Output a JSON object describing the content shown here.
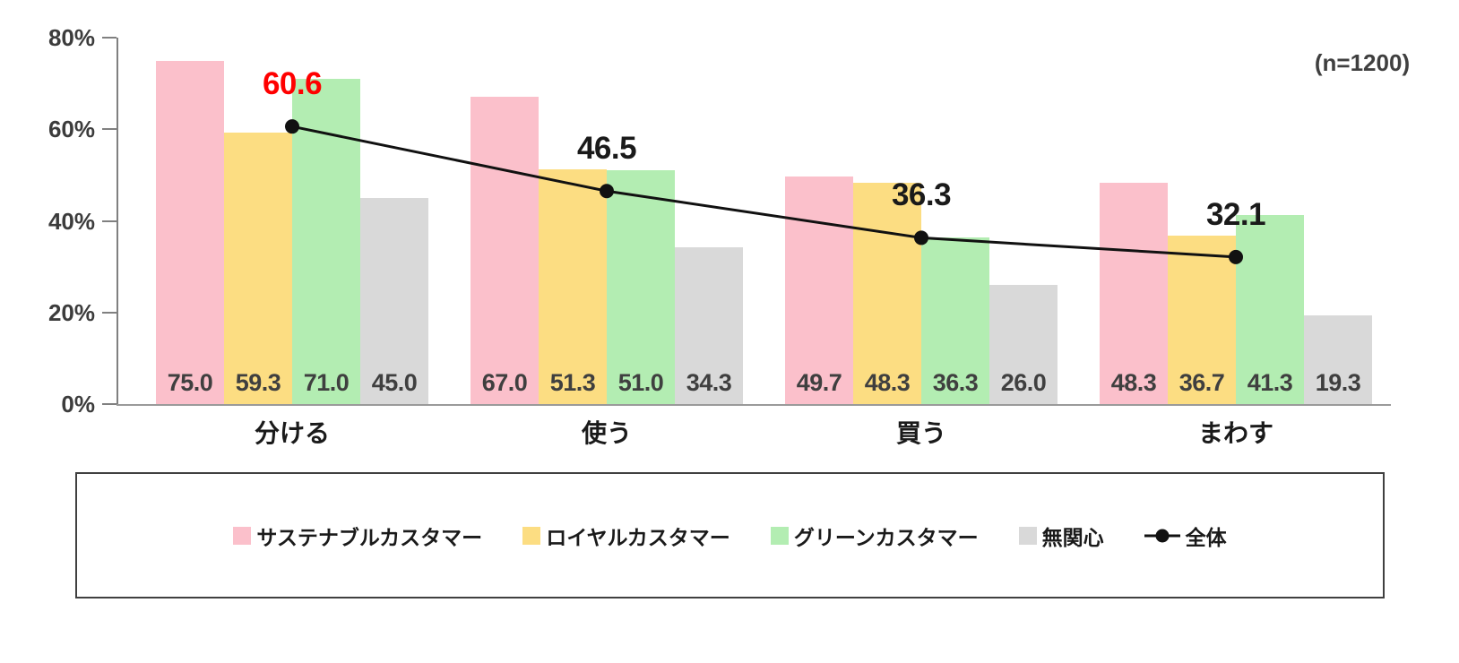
{
  "chart_data": {
    "type": "bar",
    "annotation": "(n=1200)",
    "categories": [
      "分ける",
      "使う",
      "買う",
      "まわす"
    ],
    "series": [
      {
        "name": "サステナブルカスタマー",
        "color": "#FBC0CB",
        "values": [
          75.0,
          67.0,
          49.7,
          48.3
        ]
      },
      {
        "name": "ロイヤルカスタマー",
        "color": "#FCDD82",
        "values": [
          59.3,
          51.3,
          48.3,
          36.7
        ]
      },
      {
        "name": "グリーンカスタマー",
        "color": "#B3EDB2",
        "values": [
          71.0,
          51.0,
          36.3,
          41.3
        ]
      },
      {
        "name": "無関心",
        "color": "#D9D9D9",
        "values": [
          45.0,
          34.3,
          26.0,
          19.3
        ]
      }
    ],
    "line_series": {
      "name": "全体",
      "color": "#111111",
      "values": [
        60.6,
        46.5,
        36.3,
        32.1
      ],
      "label_colors": [
        "#FF0000",
        "#1a1a1a",
        "#1a1a1a",
        "#1a1a1a"
      ]
    },
    "ylim": [
      0,
      80
    ],
    "y_ticks": [
      {
        "value": 80,
        "label": "80%"
      },
      {
        "value": 60,
        "label": "60%"
      },
      {
        "value": 40,
        "label": "40%"
      },
      {
        "value": 20,
        "label": "20%"
      },
      {
        "value": 0,
        "label": "0%"
      }
    ],
    "grid": false,
    "legend_position": "bottom-boxed",
    "value_label_color": "#3f3f3f",
    "axis_color": "#808080"
  }
}
